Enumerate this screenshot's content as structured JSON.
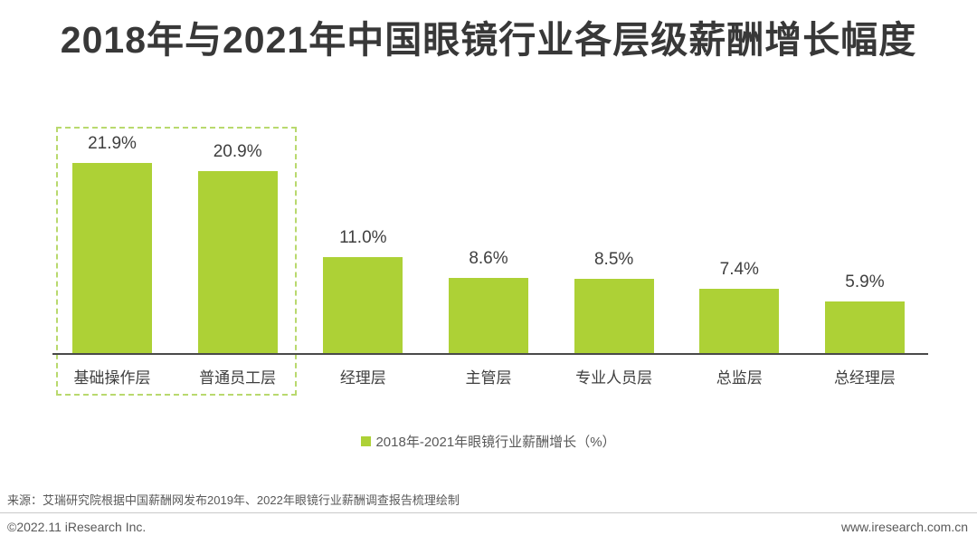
{
  "chart_data": {
    "type": "bar",
    "title": "2018年与2021年中国眼镜行业各层级薪酬增长幅度",
    "categories": [
      "基础操作层",
      "普通员工层",
      "经理层",
      "主管层",
      "专业人员层",
      "总监层",
      "总经理层"
    ],
    "values": [
      21.9,
      20.9,
      11.0,
      8.6,
      8.5,
      7.4,
      5.9
    ],
    "value_labels": [
      "21.9%",
      "20.9%",
      "11.0%",
      "8.6%",
      "8.5%",
      "7.4%",
      "5.9%"
    ],
    "unit": "%",
    "ylim": [
      0,
      25
    ],
    "grid": false,
    "legend": [
      "2018年-2021年眼镜行业薪酬增长（%）"
    ],
    "legend_position": "bottom",
    "bar_color": "#ADD136",
    "highlight": {
      "categories": [
        "基础操作层",
        "普通员工层"
      ],
      "style": "dashed-green-box"
    }
  },
  "footer": {
    "source": "来源：艾瑞研究院根据中国薪酬网发布2019年、2022年眼镜行业薪酬调查报告梳理绘制",
    "copyright": "©2022.11 iResearch Inc.",
    "website": "www.iresearch.com.cn"
  },
  "colors": {
    "bar": "#ADD136",
    "highlight_border": "#B9D96E",
    "title_text": "#383838",
    "label_text": "#3F3F3F",
    "secondary_text": "#595959",
    "axis_line": "#4A4A4A",
    "divider_line": "#C9C9C9"
  }
}
